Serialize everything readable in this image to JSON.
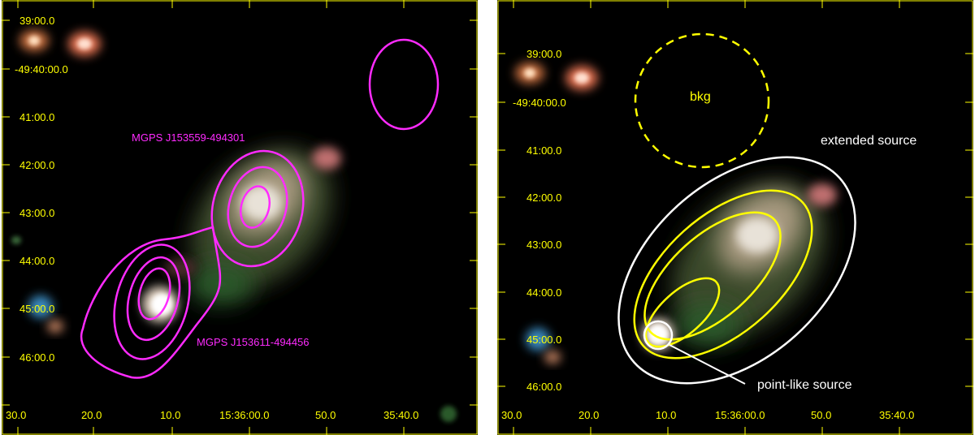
{
  "left_panel": {
    "dec_labels": [
      "39:00.0",
      "-49:40:00.0",
      "41:00.0",
      "42:00.0",
      "43:00.0",
      "44:00.0",
      "45:00.0",
      "46:00.0"
    ],
    "ra_labels": [
      "30.0",
      "20.0",
      "10.0",
      "15:36:00.0",
      "50.0",
      "35:40.0"
    ],
    "source_label_1": "MGPS J153559-494301",
    "source_label_2": "MGPS J153611-494456"
  },
  "right_panel": {
    "dec_labels": [
      "39:00.0",
      "-49:40:00.0",
      "41:00.0",
      "42:00.0",
      "43:00.0",
      "44:00.0",
      "45:00.0",
      "46:00.0"
    ],
    "ra_labels": [
      "30.0",
      "20.0",
      "10.0",
      "15:36:00.0",
      "50.0",
      "35:40.0"
    ],
    "bkg_label": "bkg",
    "extended_label": "extended source",
    "pointlike_label": "point-like source"
  },
  "colors": {
    "axis": "#ffff00",
    "radio_contours": "#ff2bff",
    "region": "#ffffff",
    "background": "#000000"
  }
}
